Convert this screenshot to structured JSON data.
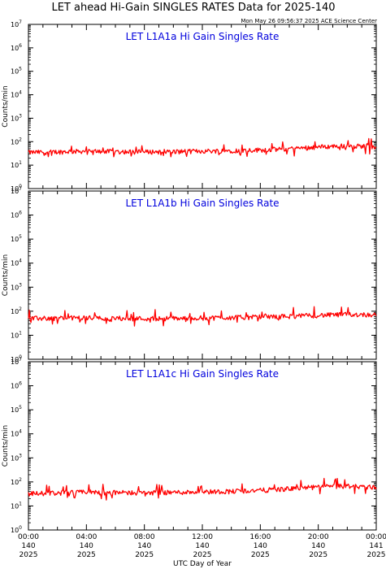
{
  "title": "LET ahead Hi-Gain SINGLES RATES Data for 2025-140",
  "timestamp": "Mon May 26 09:56:37 2025 ACE Science Center",
  "xlabel": "UTC Day of Year",
  "colors": {
    "trace": "#ff0000",
    "panel_title": "#0000dd",
    "axes": "#000000",
    "background": "#ffffff"
  },
  "chart_data": [
    {
      "type": "line",
      "title": "LET L1A1a Hi Gain Singles Rate",
      "ylabel": "Counts/min",
      "yscale": "log",
      "ylim": [
        1,
        10000000
      ],
      "yticks": [
        {
          "base": "10",
          "exp": "0"
        },
        {
          "base": "10",
          "exp": "1"
        },
        {
          "base": "10",
          "exp": "2"
        },
        {
          "base": "10",
          "exp": "3"
        },
        {
          "base": "10",
          "exp": "4"
        },
        {
          "base": "10",
          "exp": "5"
        },
        {
          "base": "10",
          "exp": "6"
        },
        {
          "base": "10",
          "exp": "7"
        }
      ],
      "x": [
        0,
        2,
        4,
        6,
        8,
        10,
        12,
        14,
        16,
        18,
        20,
        22,
        24
      ],
      "series": [
        {
          "values": [
            35,
            37,
            40,
            38,
            37,
            38,
            40,
            42,
            45,
            50,
            60,
            68,
            62
          ]
        }
      ]
    },
    {
      "type": "line",
      "title": "LET L1A1b Hi Gain Singles Rate",
      "ylabel": "Counts/min",
      "yscale": "log",
      "ylim": [
        1,
        10000000
      ],
      "yticks": [
        {
          "base": "10",
          "exp": "0"
        },
        {
          "base": "10",
          "exp": "1"
        },
        {
          "base": "10",
          "exp": "2"
        },
        {
          "base": "10",
          "exp": "3"
        },
        {
          "base": "10",
          "exp": "4"
        },
        {
          "base": "10",
          "exp": "5"
        },
        {
          "base": "10",
          "exp": "6"
        },
        {
          "base": "10",
          "exp": "7"
        }
      ],
      "x": [
        0,
        2,
        4,
        6,
        8,
        10,
        12,
        14,
        16,
        18,
        20,
        22,
        24
      ],
      "series": [
        {
          "values": [
            50,
            52,
            54,
            52,
            50,
            51,
            53,
            55,
            58,
            62,
            68,
            74,
            72
          ]
        }
      ]
    },
    {
      "type": "line",
      "title": "LET L1A1c Hi Gain Singles Rate",
      "ylabel": "Counts/min",
      "yscale": "log",
      "ylim": [
        1,
        10000000
      ],
      "yticks": [
        {
          "base": "10",
          "exp": "0"
        },
        {
          "base": "10",
          "exp": "1"
        },
        {
          "base": "10",
          "exp": "2"
        },
        {
          "base": "10",
          "exp": "3"
        },
        {
          "base": "10",
          "exp": "4"
        },
        {
          "base": "10",
          "exp": "5"
        },
        {
          "base": "10",
          "exp": "6"
        },
        {
          "base": "10",
          "exp": "7"
        }
      ],
      "x": [
        0,
        2,
        4,
        6,
        8,
        10,
        12,
        14,
        16,
        18,
        20,
        22,
        24
      ],
      "series": [
        {
          "values": [
            33,
            35,
            38,
            36,
            36,
            37,
            39,
            41,
            45,
            52,
            62,
            68,
            60
          ]
        }
      ]
    }
  ],
  "x_axis": {
    "ticks": [
      {
        "time": "00:00",
        "doy": "140",
        "year": "2025"
      },
      {
        "time": "04:00",
        "doy": "140",
        "year": "2025"
      },
      {
        "time": "08:00",
        "doy": "140",
        "year": "2025"
      },
      {
        "time": "12:00",
        "doy": "140",
        "year": "2025"
      },
      {
        "time": "16:00",
        "doy": "140",
        "year": "2025"
      },
      {
        "time": "20:00",
        "doy": "140",
        "year": "2025"
      },
      {
        "time": "00:00",
        "doy": "141",
        "year": "2025"
      }
    ]
  }
}
